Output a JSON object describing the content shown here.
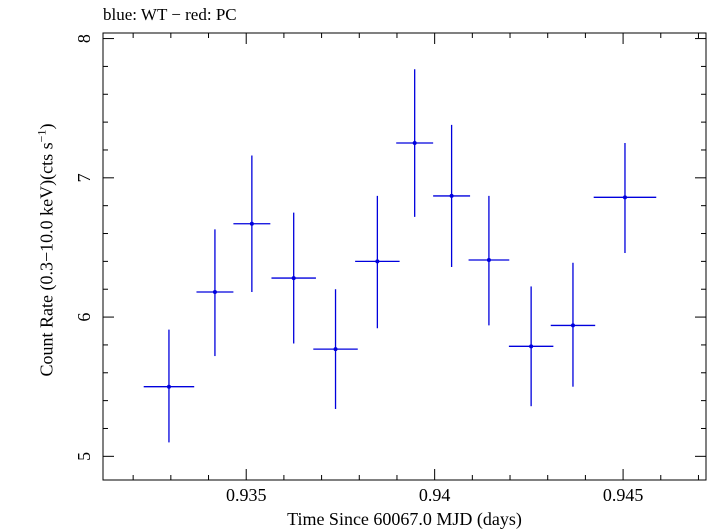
{
  "chart_data": {
    "type": "scatter",
    "title": "blue: WT − red: PC",
    "xlabel": "Time Since 60067.0 MJD (days)",
    "ylabel_main": "Count Rate (0.3−10.0 keV)(cts s",
    "ylabel_sup": "−1",
    "ylabel_end": ")",
    "xlim": [
      0.9312,
      0.9472
    ],
    "ylim": [
      4.83,
      8.04
    ],
    "xticks": [
      0.935,
      0.94,
      0.945
    ],
    "xtick_labels": [
      "0.935",
      "0.94",
      "0.945"
    ],
    "yticks": [
      5,
      6,
      7,
      8
    ],
    "ytick_labels": [
      "5",
      "6",
      "7",
      "8"
    ],
    "grid": false,
    "series": [
      {
        "color": "#0000dd",
        "points": [
          {
            "x": 0.93295,
            "y": 5.5,
            "xerr": 0.00067,
            "ylo": 5.1,
            "yhi": 5.91
          },
          {
            "x": 0.93417,
            "y": 6.18,
            "xerr": 0.00049,
            "ylo": 5.72,
            "yhi": 6.63
          },
          {
            "x": 0.93515,
            "y": 6.67,
            "xerr": 0.00049,
            "ylo": 6.18,
            "yhi": 7.16
          },
          {
            "x": 0.93626,
            "y": 6.28,
            "xerr": 0.00059,
            "ylo": 5.81,
            "yhi": 6.75
          },
          {
            "x": 0.93737,
            "y": 5.77,
            "xerr": 0.00059,
            "ylo": 5.34,
            "yhi": 6.2
          },
          {
            "x": 0.93848,
            "y": 6.4,
            "xerr": 0.00059,
            "ylo": 5.92,
            "yhi": 6.87
          },
          {
            "x": 0.93947,
            "y": 7.25,
            "xerr": 0.00049,
            "ylo": 6.72,
            "yhi": 7.78
          },
          {
            "x": 0.94045,
            "y": 6.87,
            "xerr": 0.00049,
            "ylo": 6.36,
            "yhi": 7.38
          },
          {
            "x": 0.94144,
            "y": 6.41,
            "xerr": 0.00054,
            "ylo": 5.94,
            "yhi": 6.87
          },
          {
            "x": 0.94256,
            "y": 5.79,
            "xerr": 0.00059,
            "ylo": 5.36,
            "yhi": 6.22
          },
          {
            "x": 0.94367,
            "y": 5.94,
            "xerr": 0.00059,
            "ylo": 5.5,
            "yhi": 6.39
          },
          {
            "x": 0.94505,
            "y": 6.86,
            "xerr": 0.00083,
            "ylo": 6.46,
            "yhi": 7.25
          }
        ]
      }
    ]
  }
}
